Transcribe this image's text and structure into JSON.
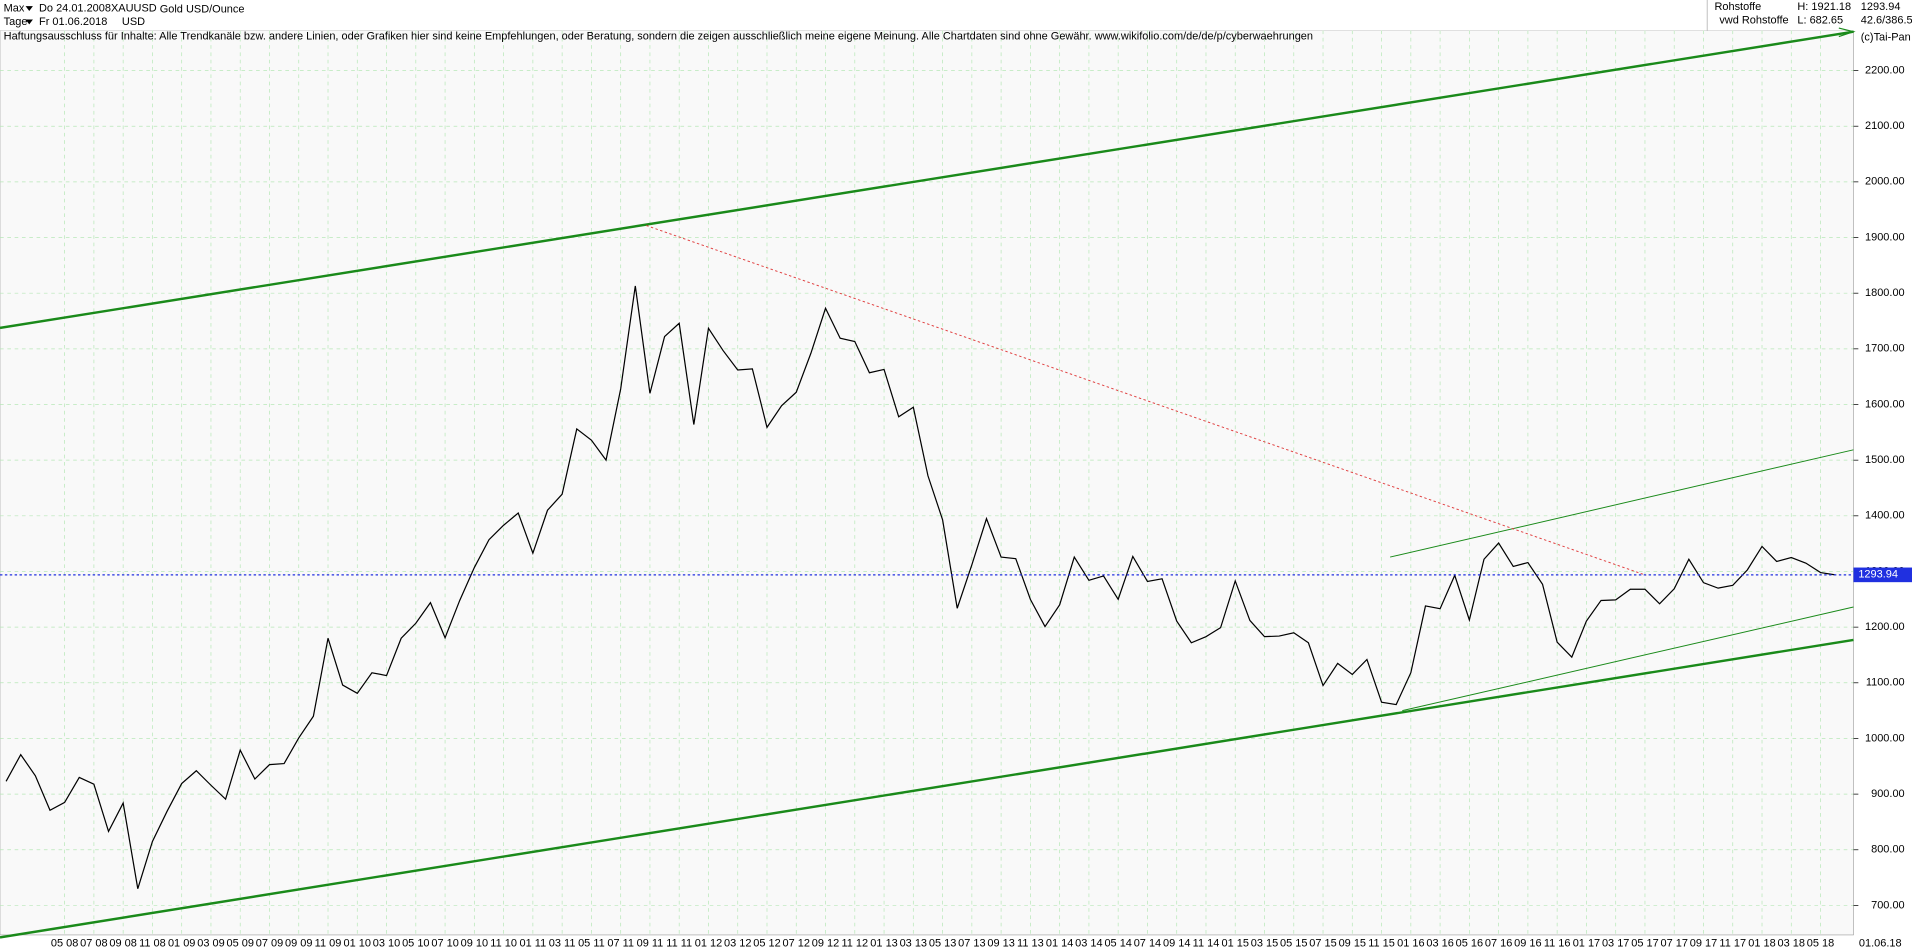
{
  "header": {
    "range": "Max",
    "start_date": "Do 24.01.2008",
    "symbol": "XAUUSD",
    "instrument": "Gold USD/Ounce",
    "period": "Tage",
    "end_date": "Fr 01.06.2018",
    "currency": "USD",
    "disclaimer": "Haftungsausschluss für Inhalte: Alle Trendkanäle bzw. andere Linien, oder Grafiken hier sind keine Empfehlungen, oder Beratung, sondern die zeigen ausschließlich meine eigene Meinung. Alle Chartdaten sind ohne Gewähr.  www.wikifolio.com/de/de/p/cyberwaehrungen",
    "source": "Rohstoffe",
    "high": "H: 1921.18",
    "source2": "vwd Rohstoffe",
    "low": "L: 682.65",
    "last": "1293.94",
    "scale_info": "42.6/386.5",
    "copyright": "(c)Tai-Pan",
    "end_label": "01.06.18"
  },
  "chart_data": {
    "type": "line",
    "color": "#000000",
    "grid": true,
    "categories": [
      null,
      null,
      null,
      null,
      "05 08",
      null,
      "07 08",
      null,
      "09 08",
      null,
      "11 08",
      null,
      "01 09",
      null,
      "03 09",
      null,
      "05 09",
      null,
      "07 09",
      null,
      "09 09",
      null,
      "11 09",
      null,
      "01 10",
      null,
      "03 10",
      null,
      "05 10",
      null,
      "07 10",
      null,
      "09 10",
      null,
      "11 10",
      null,
      "01 11",
      null,
      "03 11",
      null,
      "05 11",
      null,
      "07 11",
      null,
      "09 11",
      null,
      "11 11",
      null,
      "01 12",
      null,
      "03 12",
      null,
      "05 12",
      null,
      "07 12",
      null,
      "09 12",
      null,
      "11 12",
      null,
      "01 13",
      null,
      "03 13",
      null,
      "05 13",
      null,
      "07 13",
      null,
      "09 13",
      null,
      "11 13",
      null,
      "01 14",
      null,
      "03 14",
      null,
      "05 14",
      null,
      "07 14",
      null,
      "09 14",
      null,
      "11 14",
      null,
      "01 15",
      null,
      "03 15",
      null,
      "05 15",
      null,
      "07 15",
      null,
      "09 15",
      null,
      "11 15",
      null,
      "01 16",
      null,
      "03 16",
      null,
      "05 16",
      null,
      "07 16",
      null,
      "09 16",
      null,
      "11 16",
      null,
      "01 17",
      null,
      "03 17",
      null,
      "05 17",
      null,
      "07 17",
      null,
      "09 17",
      null,
      "11 17",
      null,
      "01 18",
      null,
      "03 18",
      null,
      "05 18",
      null
    ],
    "values": [
      923,
      971,
      933,
      871,
      885,
      930,
      918,
      833,
      884,
      730,
      815,
      869,
      919,
      942,
      916,
      891,
      979,
      927,
      953,
      955,
      1001,
      1040,
      1180,
      1096,
      1081,
      1118,
      1113,
      1180,
      1207,
      1244,
      1181,
      1248,
      1307,
      1357,
      1383,
      1405,
      1333,
      1410,
      1439,
      1556,
      1536,
      1500,
      1628,
      1813,
      1620,
      1722,
      1746,
      1564,
      1737,
      1697,
      1662,
      1664,
      1559,
      1598,
      1622,
      1692,
      1773,
      1719,
      1713,
      1657,
      1663,
      1578,
      1595,
      1472,
      1393,
      1234,
      1312,
      1395,
      1326,
      1323,
      1250,
      1201,
      1240,
      1326,
      1284,
      1292,
      1250,
      1327,
      1282,
      1287,
      1211,
      1172,
      1183,
      1199,
      1283,
      1212,
      1183,
      1184,
      1190,
      1172,
      1095,
      1135,
      1115,
      1142,
      1065,
      1061,
      1118,
      1238,
      1233,
      1293,
      1213,
      1322,
      1351,
      1309,
      1316,
      1277,
      1173,
      1146,
      1211,
      1248,
      1249,
      1268,
      1268,
      1242,
      1269,
      1322,
      1280,
      1270,
      1275,
      1303,
      1345,
      1318,
      1325,
      1315,
      1298,
      1294
    ],
    "last_value": 1293.94,
    "ylim": [
      647,
      2272
    ],
    "yticks": [
      {
        "value": 700,
        "label": "700.00"
      },
      {
        "value": 800,
        "label": "800.00"
      },
      {
        "value": 900,
        "label": "900.00"
      },
      {
        "value": 1000,
        "label": "1000.00"
      },
      {
        "value": 1100,
        "label": "1100.00"
      },
      {
        "value": 1200,
        "label": "1200.00"
      },
      {
        "value": 1300,
        "label": "1300.00"
      },
      {
        "value": 1400,
        "label": "1400.00"
      },
      {
        "value": 1500,
        "label": "1500.00"
      },
      {
        "value": 1600,
        "label": "1600.00"
      },
      {
        "value": 1700,
        "label": "1700.00"
      },
      {
        "value": 1800,
        "label": "1800.00"
      },
      {
        "value": 1900,
        "label": "1900.00"
      },
      {
        "value": 2000,
        "label": "2000.00"
      },
      {
        "value": 2100,
        "label": "2100.00"
      },
      {
        "value": 2200,
        "label": "2200.00"
      }
    ]
  }
}
